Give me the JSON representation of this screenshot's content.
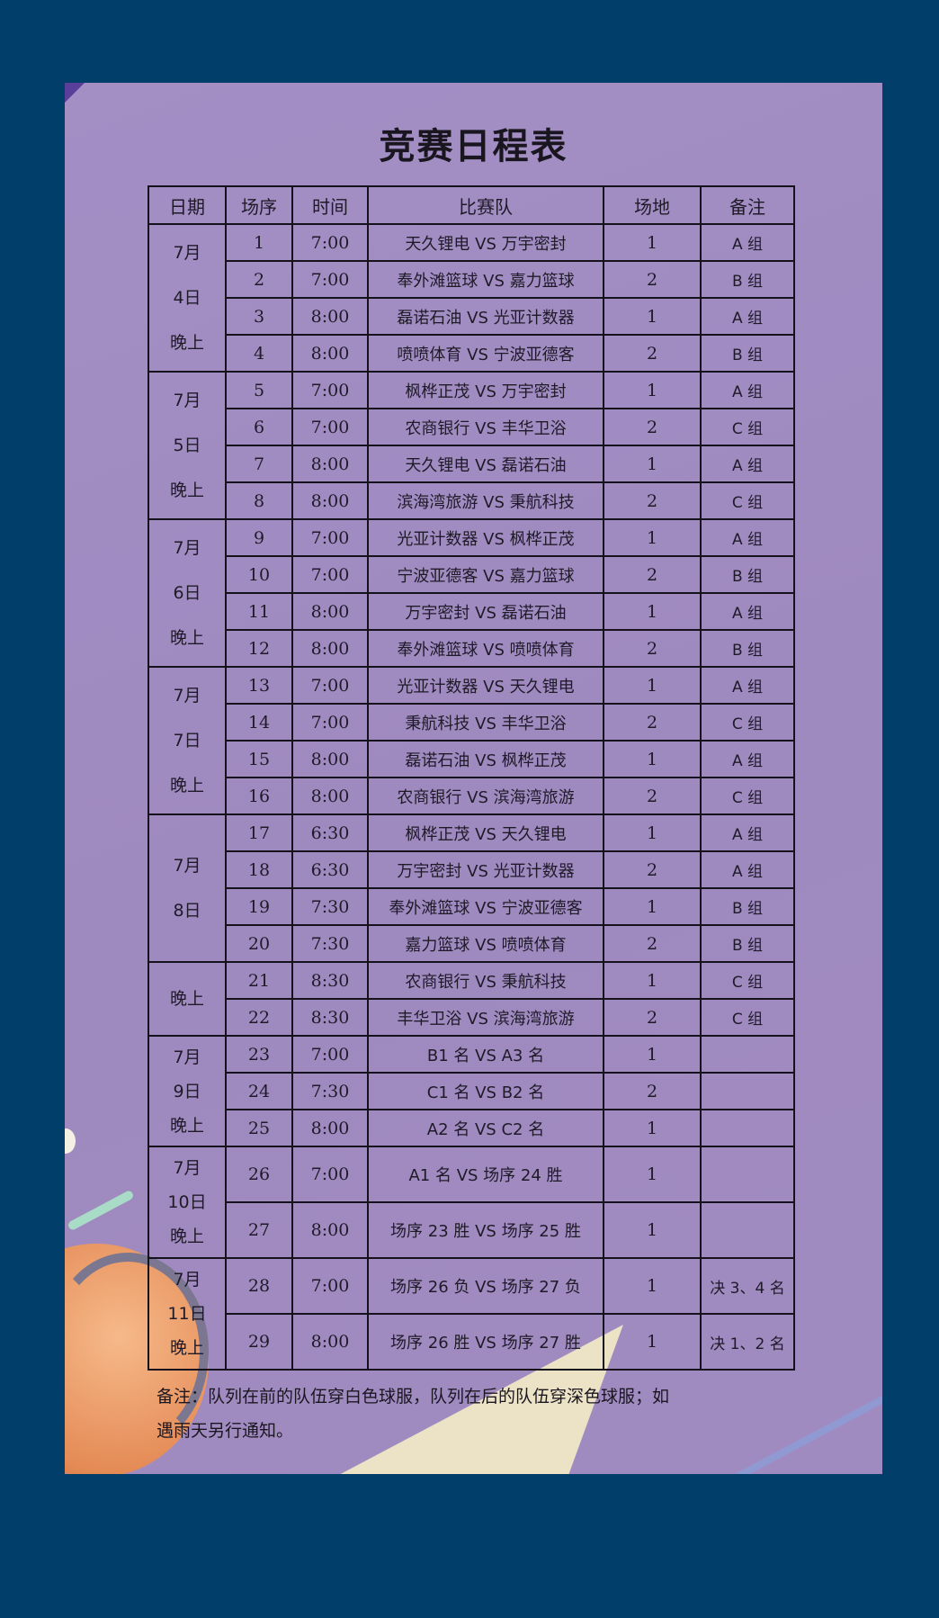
{
  "title": "竞赛日程表",
  "headers": [
    "日期",
    "场序",
    "时间",
    "比赛队",
    "场地",
    "备注"
  ],
  "groups": [
    {
      "date_lines": [
        "7月",
        "4日",
        "晚上"
      ],
      "matches": [
        {
          "no": "1",
          "time": "7:00",
          "teams": "天久锂电 VS 万宇密封",
          "venue": "1",
          "note": "A 组"
        },
        {
          "no": "2",
          "time": "7:00",
          "teams": "奉外滩篮球 VS 嘉力篮球",
          "venue": "2",
          "note": "B 组"
        },
        {
          "no": "3",
          "time": "8:00",
          "teams": "磊诺石油 VS 光亚计数器",
          "venue": "1",
          "note": "A 组"
        },
        {
          "no": "4",
          "time": "8:00",
          "teams": "喷喷体育 VS 宁波亚德客",
          "venue": "2",
          "note": "B 组"
        }
      ]
    },
    {
      "date_lines": [
        "7月",
        "5日",
        "晚上"
      ],
      "matches": [
        {
          "no": "5",
          "time": "7:00",
          "teams": "枫桦正茂 VS 万宇密封",
          "venue": "1",
          "note": "A 组"
        },
        {
          "no": "6",
          "time": "7:00",
          "teams": "农商银行 VS 丰华卫浴",
          "venue": "2",
          "note": "C 组"
        },
        {
          "no": "7",
          "time": "8:00",
          "teams": "天久锂电 VS 磊诺石油",
          "venue": "1",
          "note": "A 组"
        },
        {
          "no": "8",
          "time": "8:00",
          "teams": "滨海湾旅游 VS 秉航科技",
          "venue": "2",
          "note": "C 组"
        }
      ]
    },
    {
      "date_lines": [
        "7月",
        "6日",
        "晚上"
      ],
      "matches": [
        {
          "no": "9",
          "time": "7:00",
          "teams": "光亚计数器 VS 枫桦正茂",
          "venue": "1",
          "note": "A 组"
        },
        {
          "no": "10",
          "time": "7:00",
          "teams": "宁波亚德客 VS 嘉力篮球",
          "venue": "2",
          "note": "B 组"
        },
        {
          "no": "11",
          "time": "8:00",
          "teams": "万宇密封 VS 磊诺石油",
          "venue": "1",
          "note": "A 组"
        },
        {
          "no": "12",
          "time": "8:00",
          "teams": "奉外滩篮球 VS 喷喷体育",
          "venue": "2",
          "note": "B 组"
        }
      ]
    },
    {
      "date_lines": [
        "7月",
        "7日",
        "晚上"
      ],
      "matches": [
        {
          "no": "13",
          "time": "7:00",
          "teams": "光亚计数器 VS 天久锂电",
          "venue": "1",
          "note": "A 组"
        },
        {
          "no": "14",
          "time": "7:00",
          "teams": "秉航科技 VS 丰华卫浴",
          "venue": "2",
          "note": "C 组"
        },
        {
          "no": "15",
          "time": "8:00",
          "teams": "磊诺石油 VS 枫桦正茂",
          "venue": "1",
          "note": "A 组"
        },
        {
          "no": "16",
          "time": "8:00",
          "teams": "农商银行 VS 滨海湾旅游",
          "venue": "2",
          "note": "C 组"
        }
      ]
    },
    {
      "date_lines": [
        "7月",
        "8日"
      ],
      "matches": [
        {
          "no": "17",
          "time": "6:30",
          "teams": "枫桦正茂 VS 天久锂电",
          "venue": "1",
          "note": "A 组"
        },
        {
          "no": "18",
          "time": "6:30",
          "teams": "万宇密封 VS 光亚计数器",
          "venue": "2",
          "note": "A 组"
        },
        {
          "no": "19",
          "time": "7:30",
          "teams": "奉外滩篮球 VS 宁波亚德客",
          "venue": "1",
          "note": "B 组"
        },
        {
          "no": "20",
          "time": "7:30",
          "teams": "嘉力篮球 VS 喷喷体育",
          "venue": "2",
          "note": "B 组"
        }
      ]
    },
    {
      "date_lines": [
        "晚上"
      ],
      "matches": [
        {
          "no": "21",
          "time": "8:30",
          "teams": "农商银行 VS 秉航科技",
          "venue": "1",
          "note": "C 组"
        },
        {
          "no": "22",
          "time": "8:30",
          "teams": "丰华卫浴 VS 滨海湾旅游",
          "venue": "2",
          "note": "C 组"
        }
      ]
    },
    {
      "date_lines": [
        "7月",
        "9日",
        "晚上"
      ],
      "matches": [
        {
          "no": "23",
          "time": "7:00",
          "teams": "B1 名  VS  A3 名",
          "venue": "1",
          "note": ""
        },
        {
          "no": "24",
          "time": "7:30",
          "teams": "C1 名  VS  B2 名",
          "venue": "2",
          "note": ""
        },
        {
          "no": "25",
          "time": "8:00",
          "teams": "A2 名  VS  C2 名",
          "venue": "1",
          "note": ""
        }
      ]
    },
    {
      "date_lines": [
        "7月",
        "10日",
        "晚上"
      ],
      "tall": true,
      "matches": [
        {
          "no": "26",
          "time": "7:00",
          "teams": "A1 名 VS 场序 24 胜",
          "venue": "1",
          "note": ""
        },
        {
          "no": "27",
          "time": "8:00",
          "teams": "场序 23 胜 VS 场序 25 胜",
          "venue": "1",
          "note": ""
        }
      ]
    },
    {
      "date_lines": [
        "7月",
        "11日",
        "晚上"
      ],
      "tall": true,
      "matches": [
        {
          "no": "28",
          "time": "7:00",
          "teams": "场序 26 负 VS 场序 27 负",
          "venue": "1",
          "note": "决 3、4 名"
        },
        {
          "no": "29",
          "time": "8:00",
          "teams": "场序 26 胜 VS 场序 27 胜",
          "venue": "1",
          "note": "决 1、2 名"
        }
      ]
    }
  ],
  "footnote_lines": [
    "备注：队列在前的队伍穿白色球服，队列在后的队伍穿深色球服；如",
    "遇雨天另行通知。"
  ],
  "colors": {
    "background": "#023e6a",
    "panel": "#a08bc1",
    "border": "#15121c"
  }
}
